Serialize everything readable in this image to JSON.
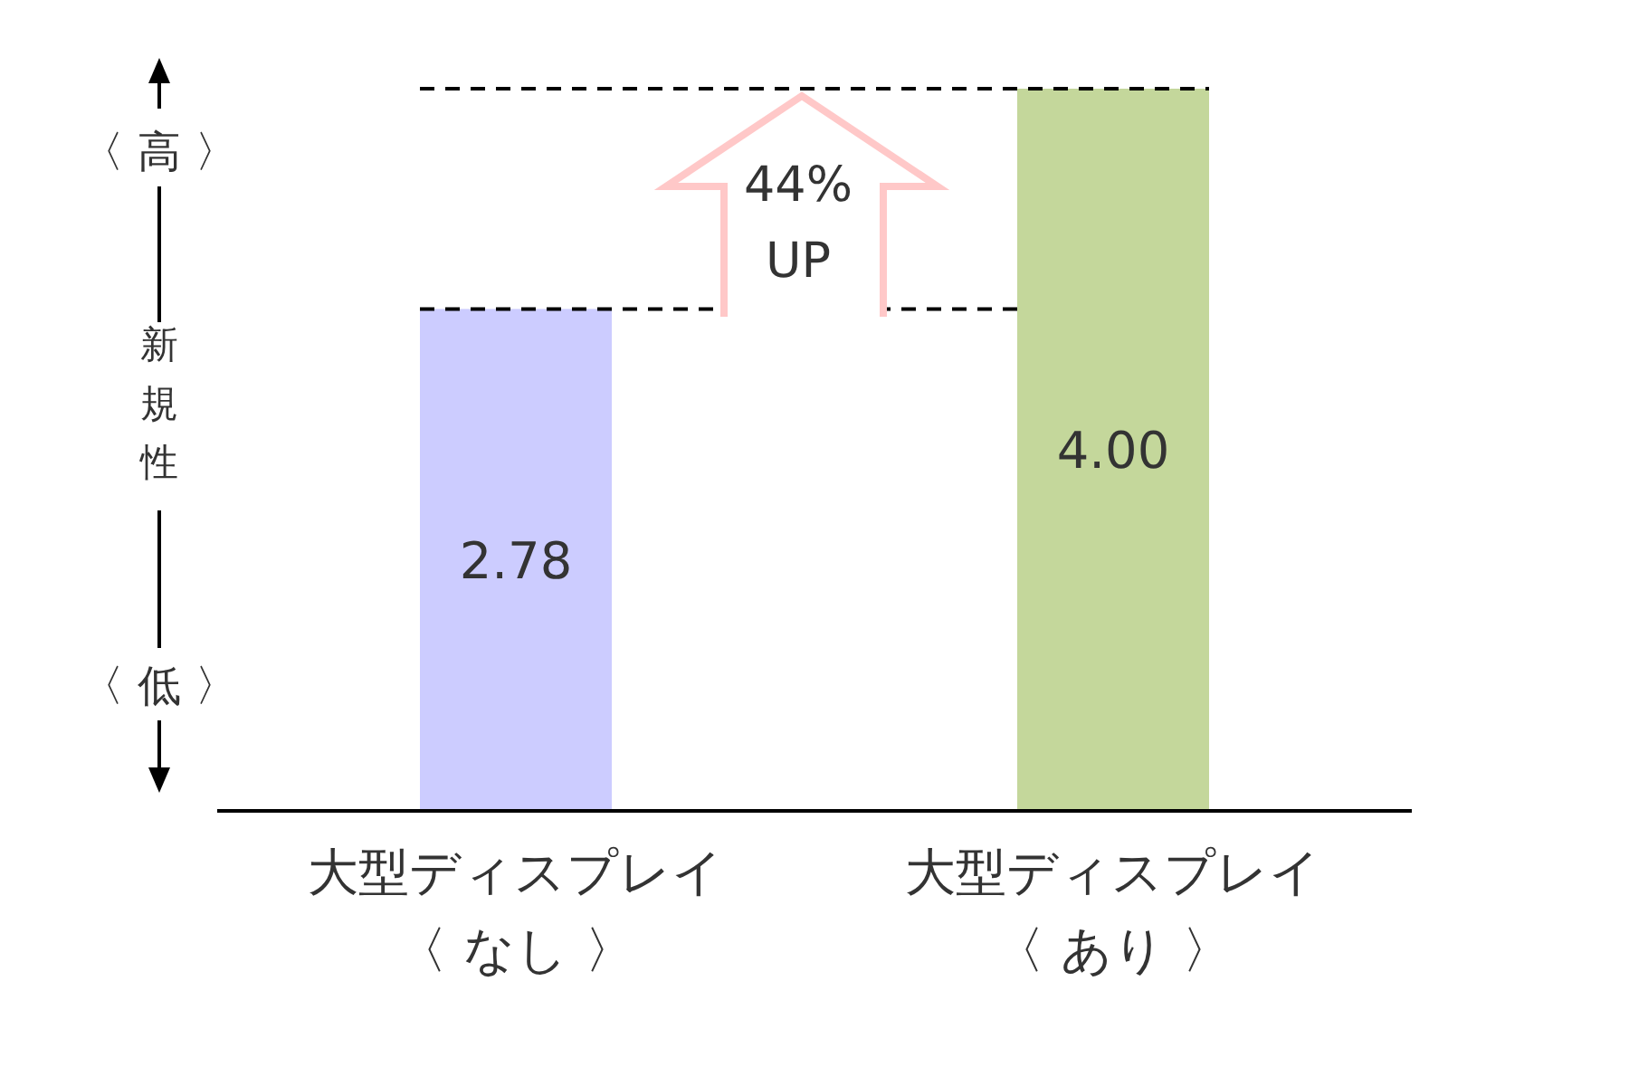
{
  "chart_data": {
    "type": "bar",
    "categories": [
      "大型ディスプレイ〈 なし 〉",
      "大型ディスプレイ〈 あり 〉"
    ],
    "values": [
      2.78,
      4.0
    ],
    "colors": [
      "#ccccff",
      "#c4d79b"
    ],
    "ylim": [
      0,
      4
    ],
    "value_labels": [
      "2.78",
      "4.00"
    ],
    "ylabel": "新規性",
    "annotations": [
      "〈 高 〉",
      "〈 低 〉",
      "44%\nUP"
    ],
    "ref_lines": [
      {
        "axis": "y",
        "value": 2.78,
        "line_style": "dashed"
      },
      {
        "axis": "y",
        "value": 4.0,
        "line_style": "dashed"
      }
    ]
  }
}
